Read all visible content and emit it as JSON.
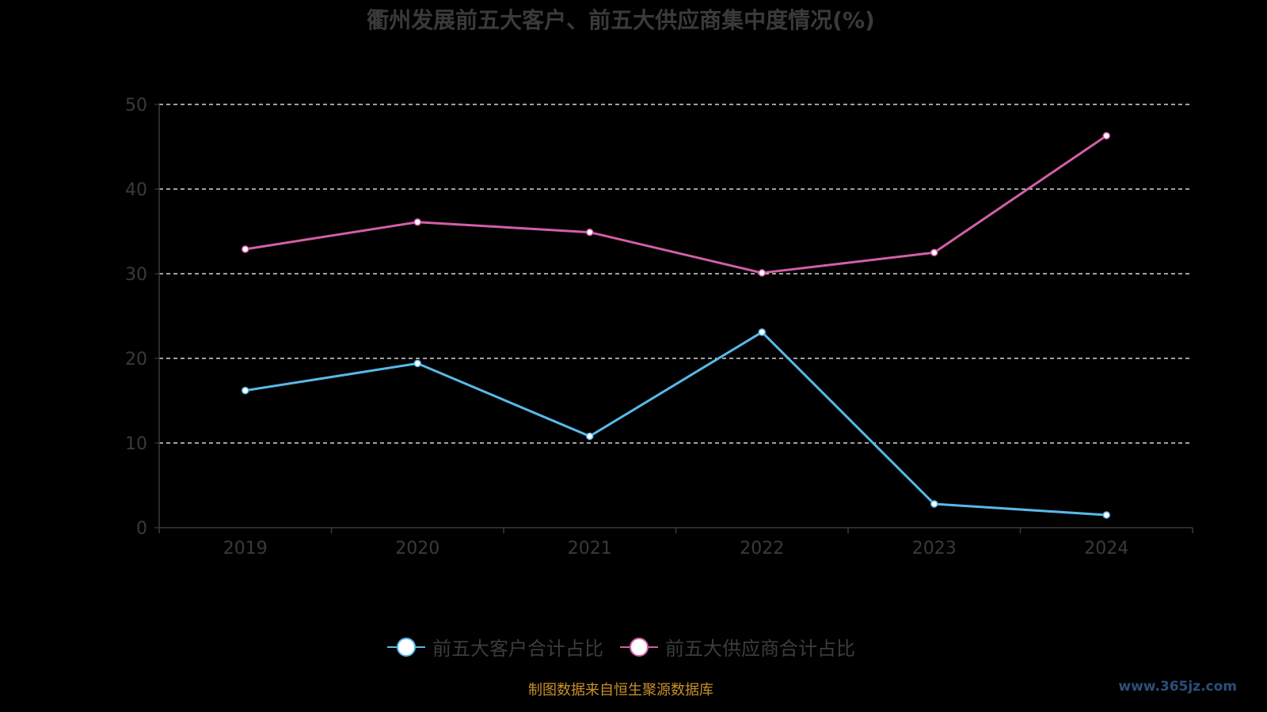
{
  "chart_data": {
    "type": "line",
    "title": "衢州发展前五大客户、前五大供应商集中度情况(%)",
    "categories": [
      "2019",
      "2020",
      "2021",
      "2022",
      "2023",
      "2024"
    ],
    "series": [
      {
        "name": "前五大客户合计占比",
        "color": "#58b9ea",
        "values": [
          16.2,
          19.4,
          10.8,
          23.1,
          2.8,
          1.5
        ]
      },
      {
        "name": "前五大供应商合计占比",
        "color": "#d35fa8",
        "values": [
          32.9,
          36.1,
          34.9,
          30.1,
          32.5,
          46.3
        ]
      }
    ],
    "yticks": [
      "0",
      "10",
      "20",
      "30",
      "40",
      "50"
    ],
    "ylim": [
      0,
      50
    ],
    "grid": true,
    "legend_position": "bottom"
  },
  "source_note": "制图数据来自恒生聚源数据库",
  "watermark": "www.365jz.com"
}
